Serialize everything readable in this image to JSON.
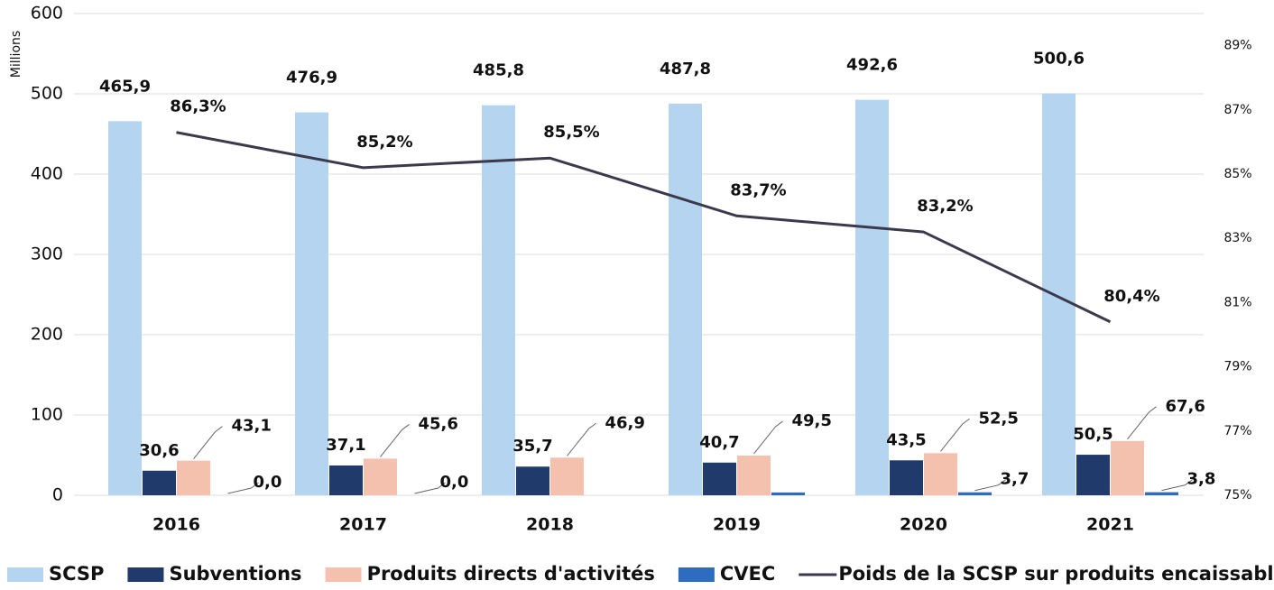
{
  "chart_data": {
    "type": "bar_line",
    "y_axis_label": "Millions",
    "categories": [
      "2016",
      "2017",
      "2018",
      "2019",
      "2020",
      "2021"
    ],
    "ylim": [
      0,
      600
    ],
    "yticks": [
      0,
      100,
      200,
      300,
      400,
      500,
      600
    ],
    "y2lim": [
      75,
      90
    ],
    "y2ticks": [
      {
        "value": 75,
        "label": "75%"
      },
      {
        "value": 77,
        "label": "77%"
      },
      {
        "value": 79,
        "label": "79%"
      },
      {
        "value": 81,
        "label": "81%"
      },
      {
        "value": 83,
        "label": "83%"
      },
      {
        "value": 85,
        "label": "85%"
      },
      {
        "value": 87,
        "label": "87%"
      },
      {
        "value": 89,
        "label": "89%"
      }
    ],
    "grid": true,
    "legend": "bottom",
    "series": [
      {
        "name": "SCSP",
        "type": "bar",
        "color": "#b5d4ef",
        "values": [
          465.9,
          476.9,
          485.8,
          487.8,
          492.6,
          500.6
        ],
        "value_labels": [
          "465,9",
          "476,9",
          "485,8",
          "487,8",
          "492,6",
          "500,6"
        ]
      },
      {
        "name": "Subventions",
        "type": "bar",
        "color": "#1f3a6b",
        "values": [
          30.6,
          37.1,
          35.7,
          40.7,
          43.5,
          50.5
        ],
        "value_labels": [
          "30,6",
          "37,1",
          "35,7",
          "40,7",
          "43,5",
          "50,5"
        ]
      },
      {
        "name": "Produits directs d'activités",
        "type": "bar",
        "color": "#f4c1ae",
        "values": [
          43.1,
          45.6,
          46.9,
          49.5,
          52.5,
          67.6
        ],
        "value_labels": [
          "43,1",
          "45,6",
          "46,9",
          "49,5",
          "52,5",
          "67,6"
        ]
      },
      {
        "name": "CVEC",
        "type": "bar",
        "color": "#2e6cc0",
        "values": [
          0,
          0,
          null,
          3.5,
          3.7,
          3.8
        ],
        "value_labels": [
          "0,0",
          "0,0",
          null,
          null,
          "3,7",
          "3,8"
        ]
      },
      {
        "name": "Poids de la SCSP sur produits encaissables",
        "type": "line",
        "axis": "y2",
        "color": "#3b3a4c",
        "values": [
          86.3,
          85.2,
          85.5,
          83.7,
          83.2,
          80.4
        ],
        "value_labels": [
          "86,3%",
          "85,2%",
          "85,5%",
          "83,7%",
          "83,2%",
          "80,4%"
        ]
      }
    ]
  }
}
